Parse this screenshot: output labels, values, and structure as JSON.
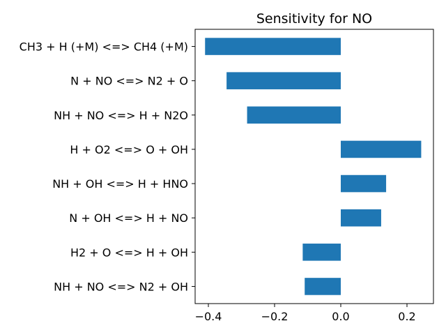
{
  "chart_data": {
    "type": "bar",
    "orientation": "horizontal",
    "title": "Sensitivity for NO",
    "xlabel": "",
    "ylabel": "",
    "categories": [
      "CH3 + H (+M) <=> CH4 (+M)",
      "N + NO <=> N2 + O",
      "NH + NO <=> H + N2O",
      "H + O2 <=> O + OH",
      "NH + OH <=> H + HNO",
      "N + OH <=> H + NO",
      "H2 + O <=> H + OH",
      "NH + NO <=> N2 + OH"
    ],
    "values": [
      -0.41,
      -0.345,
      -0.283,
      0.243,
      0.137,
      0.122,
      -0.115,
      -0.109
    ],
    "xlim": [
      -0.44,
      0.28
    ],
    "xticks": [
      -0.4,
      -0.2,
      0.0,
      0.2
    ],
    "xtick_labels": [
      "−0.4",
      "−0.2",
      "0.0",
      "0.2"
    ],
    "bar_color": "#1f77b4",
    "grid": false,
    "legend": "none"
  }
}
